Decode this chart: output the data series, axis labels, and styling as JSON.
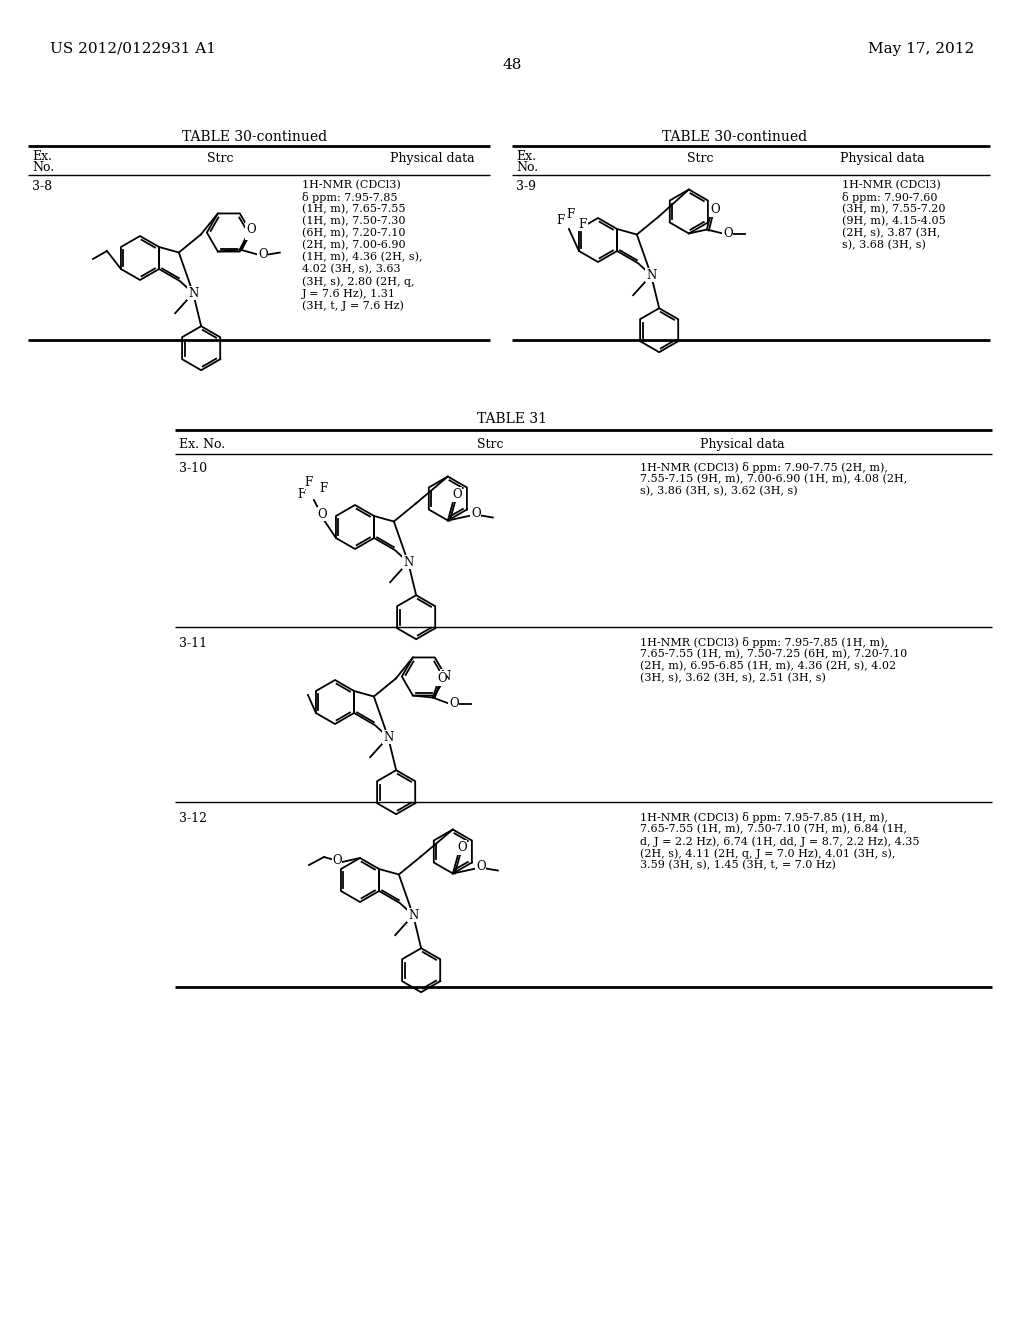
{
  "background_color": "#ffffff",
  "page_number": "48",
  "patent_left": "US 2012/0122931 A1",
  "patent_right": "May 17, 2012",
  "table30_left_title": "TABLE 30-continued",
  "table30_right_title": "TABLE 30-continued",
  "table31_title": "TABLE 31",
  "nmr_38": "1H-NMR (CDCl3)\nδ ppm: 7.95-7.85\n(1H, m), 7.65-7.55\n(1H, m), 7.50-7.30\n(6H, m), 7.20-7.10\n(2H, m), 7.00-6.90\n(1H, m), 4.36 (2H, s),\n4.02 (3H, s), 3.63\n(3H, s), 2.80 (2H, q,\nJ = 7.6 Hz), 1.31\n(3H, t, J = 7.6 Hz)",
  "nmr_39": "1H-NMR (CDCl3)\nδ ppm: 7.90-7.60\n(3H, m), 7.55-7.20\n(9H, m), 4.15-4.05\n(2H, s), 3.87 (3H,\ns), 3.68 (3H, s)",
  "nmr_310": "1H-NMR (CDCl3) δ ppm: 7.90-7.75 (2H, m),\n7.55-7.15 (9H, m), 7.00-6.90 (1H, m), 4.08 (2H,\ns), 3.86 (3H, s), 3.62 (3H, s)",
  "nmr_311": "1H-NMR (CDCl3) δ ppm: 7.95-7.85 (1H, m),\n7.65-7.55 (1H, m), 7.50-7.25 (6H, m), 7.20-7.10\n(2H, m), 6.95-6.85 (1H, m), 4.36 (2H, s), 4.02\n(3H, s), 3.62 (3H, s), 2.51 (3H, s)",
  "nmr_312": "1H-NMR (CDCl3) δ ppm: 7.95-7.85 (1H, m),\n7.65-7.55 (1H, m), 7.50-7.10 (7H, m), 6.84 (1H,\nd, J = 2.2 Hz), 6.74 (1H, dd, J = 8.7, 2.2 Hz), 4.35\n(2H, s), 4.11 (2H, q, J = 7.0 Hz), 4.01 (3H, s),\n3.59 (3H, s), 1.45 (3H, t, = 7.0 Hz)"
}
